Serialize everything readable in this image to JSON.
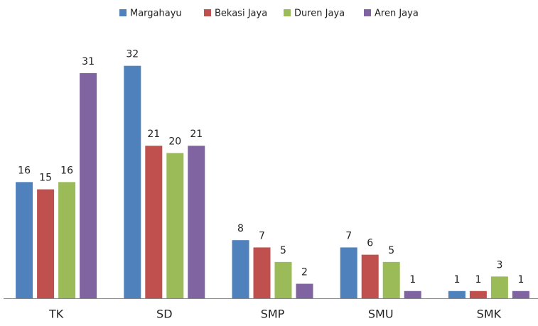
{
  "chart_data": {
    "type": "bar",
    "categories": [
      "TK",
      "SD",
      "SMP",
      "SMU",
      "SMK"
    ],
    "series": [
      {
        "name": "Margahayu",
        "color": "#4f81bd",
        "values": [
          16,
          32,
          8,
          7,
          1
        ]
      },
      {
        "name": "Bekasi Jaya",
        "color": "#c0504d",
        "values": [
          15,
          21,
          7,
          6,
          1
        ]
      },
      {
        "name": "Duren Jaya",
        "color": "#9bbb59",
        "values": [
          16,
          20,
          5,
          5,
          3
        ]
      },
      {
        "name": "Aren Jaya",
        "color": "#8064a2",
        "values": [
          31,
          21,
          2,
          1,
          1
        ]
      }
    ],
    "ylim": [
      0,
      35
    ],
    "legend": "top"
  }
}
